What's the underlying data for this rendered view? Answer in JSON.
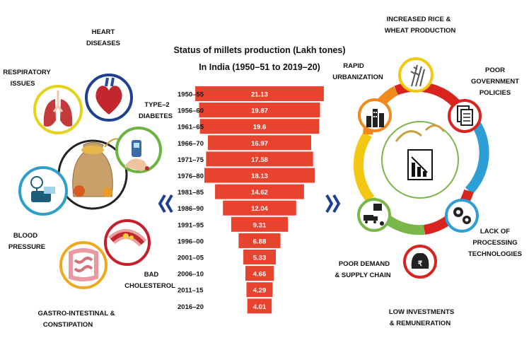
{
  "chart_data": {
    "type": "bar",
    "orientation": "horizontal-centered",
    "title_lines": [
      "Status of millets production (Lakh tones)",
      "In India (1950–51 to 2019–20)"
    ],
    "categories": [
      "1950–55",
      "1956–60",
      "1961–65",
      "1966–70",
      "1971–75",
      "1976–80",
      "1981–85",
      "1986–90",
      "1991–95",
      "1996–00",
      "2001–05",
      "2006–10",
      "2011–15",
      "2016–20"
    ],
    "values": [
      21.13,
      19.87,
      19.6,
      16.97,
      17.58,
      18.13,
      14.62,
      12.04,
      9.31,
      6.88,
      5.33,
      4.66,
      4.29,
      4.01
    ],
    "labels": [
      "21.13",
      "19.87",
      "19.6",
      "16.97",
      "17.58",
      "18.13",
      "14.62",
      "12.04",
      "9.31",
      "6.88",
      "5.33",
      "4.66",
      "4.29",
      "4.01"
    ],
    "bar_color": "#e8432f",
    "label_color": "#ffffff"
  },
  "health": {
    "items": [
      {
        "label": "HEART\nDISEASES",
        "icon": "heart-icon",
        "ring": "#1f3f8f"
      },
      {
        "label": "RESPIRATORY\nISSUES",
        "icon": "lungs-icon",
        "ring": "#e4d21b"
      },
      {
        "label": "TYPE–2\nDIABETES",
        "icon": "glucometer-icon",
        "ring": "#6cb33f"
      },
      {
        "label": "BLOOD\nPRESSURE",
        "icon": "blood-pressure-icon",
        "ring": "#2f9fc9"
      },
      {
        "label": "BAD\nCHOLESTEROL",
        "icon": "artery-icon",
        "ring": "#c81e2a"
      },
      {
        "label": "GASTRO-INTESTINAL &\nCONSTIPATION",
        "icon": "intestine-icon",
        "ring": "#f0a81e"
      }
    ],
    "center_icon": "millet-sack-icon"
  },
  "causes": {
    "items": [
      {
        "label": "INCREASED RICE &\nWHEAT PRODUCTION",
        "icon": "grain-icon"
      },
      {
        "label": "POOR\nGOVERNMENT\nPOLICIES",
        "icon": "document-icon"
      },
      {
        "label": "LACK OF\nPROCESSING\nTECHNOLOGIES",
        "icon": "gears-icon"
      },
      {
        "label": "LOW INVESTMENTS\n& REMUNERATION",
        "icon": "rupee-bag-icon"
      },
      {
        "label": "POOR DEMAND\n& SUPPLY CHAIN",
        "icon": "supply-chain-icon"
      },
      {
        "label": "RAPID\nURBANIZATION",
        "icon": "city-icon"
      }
    ],
    "center_icon": "declining-chart-icon"
  },
  "colors": {
    "navy": "#1f3f8f",
    "orange": "#f08a1c",
    "red": "#d8231f",
    "blue": "#2e9fd4",
    "green": "#7ab648",
    "yellow": "#f2c812"
  }
}
